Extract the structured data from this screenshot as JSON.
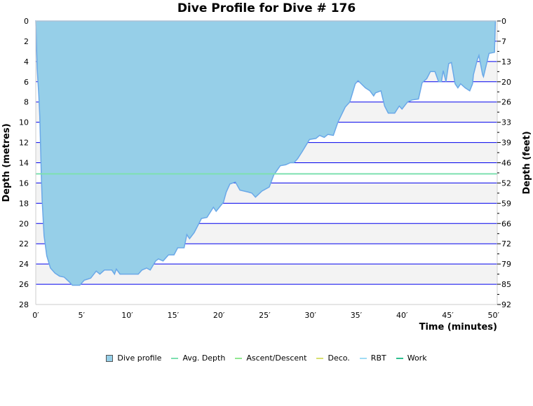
{
  "chart_data": {
    "type": "area",
    "title": "Dive Profile for Dive # 176",
    "xlabel": "Time (minutes)",
    "ylabel": "Depth (metres)",
    "ylabel_right": "Depth (feet)",
    "xlim": [
      0,
      50.4
    ],
    "ylim": [
      0,
      28
    ],
    "y_inverted": true,
    "grid": true,
    "legend_position": "bottom",
    "x_ticks": [
      "0′",
      "5′",
      "10′",
      "15′",
      "20′",
      "25′",
      "30′",
      "35′",
      "40′",
      "45′",
      "50′"
    ],
    "x_tick_values": [
      0,
      5,
      10,
      15,
      20,
      25,
      30,
      35,
      40,
      45,
      50
    ],
    "y_ticks": [
      "0",
      "2",
      "4",
      "6",
      "8",
      "10",
      "12",
      "14",
      "16",
      "18",
      "20",
      "22",
      "24",
      "26",
      "28"
    ],
    "y_tick_values": [
      0,
      2,
      4,
      6,
      8,
      10,
      12,
      14,
      16,
      18,
      20,
      22,
      24,
      26,
      28
    ],
    "y_right_ticks": [
      "0",
      "7",
      "13",
      "20",
      "26",
      "33",
      "39",
      "46",
      "52",
      "59",
      "66",
      "72",
      "79",
      "85",
      "92"
    ],
    "series": [
      {
        "name": "Dive profile",
        "color": "#96cfe8",
        "stroke": "#6aa8e8",
        "x": [
          0,
          0.15,
          0.33,
          0.44,
          0.5,
          0.6,
          0.7,
          0.9,
          1.2,
          1.6,
          2.1,
          2.6,
          3.1,
          3.7,
          4.0,
          4.8,
          5.3,
          6.0,
          6.6,
          7.0,
          7.5,
          8.3,
          8.6,
          8.8,
          9.2,
          11.2,
          11.6,
          12.1,
          12.5,
          13.1,
          13.4,
          13.9,
          14.5,
          15.1,
          15.5,
          16.2,
          16.5,
          16.8,
          17.3,
          18.1,
          18.7,
          19.4,
          19.7,
          20.5,
          20.8,
          21.2,
          21.8,
          22.3,
          23.2,
          23.6,
          24.0,
          24.7,
          25.5,
          26.0,
          26.7,
          27.3,
          27.8,
          28.2,
          28.6,
          29.1,
          29.9,
          30.6,
          31.0,
          31.5,
          31.9,
          32.5,
          33.0,
          33.8,
          34.3,
          34.9,
          35.2,
          36.0,
          36.5,
          36.9,
          37.1,
          37.7,
          38.1,
          38.5,
          39.2,
          39.7,
          40.0,
          40.6,
          41.1,
          41.8,
          42.2,
          42.7,
          43.1,
          43.6,
          44.0,
          44.3,
          44.5,
          44.8,
          45.1,
          45.4,
          45.8,
          46.1,
          46.4,
          46.9,
          47.4,
          47.7,
          47.8,
          48.2,
          48.4,
          48.8,
          48.9,
          49.5,
          50.1,
          50.2
        ],
        "y": [
          0,
          4.7,
          7.3,
          9.4,
          11.5,
          15,
          17.7,
          21.2,
          23.2,
          24.4,
          24.9,
          25.2,
          25.3,
          25.8,
          26.1,
          26.1,
          25.6,
          25.4,
          24.7,
          25.0,
          24.6,
          24.6,
          25.0,
          24.5,
          25.0,
          25.0,
          24.6,
          24.4,
          24.6,
          23.7,
          23.5,
          23.7,
          23.1,
          23.1,
          22.4,
          22.4,
          21.1,
          21.5,
          20.9,
          19.5,
          19.4,
          18.4,
          18.8,
          17.9,
          16.9,
          16.1,
          15.9,
          16.7,
          16.9,
          17.0,
          17.4,
          16.8,
          16.4,
          15.2,
          14.3,
          14.2,
          14.0,
          14.0,
          13.6,
          12.9,
          11.7,
          11.6,
          11.3,
          11.5,
          11.2,
          11.3,
          10.0,
          8.5,
          8.0,
          6.2,
          5.9,
          6.6,
          6.9,
          7.4,
          7.1,
          6.9,
          8.4,
          9.1,
          9.1,
          8.4,
          8.7,
          8.0,
          7.8,
          7.7,
          6.1,
          5.7,
          5.0,
          5.0,
          6.0,
          6.0,
          4.9,
          6.0,
          4.2,
          4.1,
          6.2,
          6.6,
          6.2,
          6.6,
          6.9,
          6.2,
          5.3,
          3.9,
          3.4,
          5.3,
          5.5,
          3.2,
          3.1,
          0
        ]
      },
      {
        "name": "Avg. Depth",
        "color": "#7de0b0",
        "value": 15.1
      },
      {
        "name": "Ascent/Descent",
        "color": "#90e890"
      },
      {
        "name": "Deco.",
        "color": "#d8e070"
      },
      {
        "name": "RBT",
        "color": "#a0dcf5"
      },
      {
        "name": "Work",
        "color": "#30c090"
      }
    ],
    "colors": {
      "gridline": "#0000ee",
      "band": "#f3f3f3",
      "axis": "#cccccc"
    }
  }
}
